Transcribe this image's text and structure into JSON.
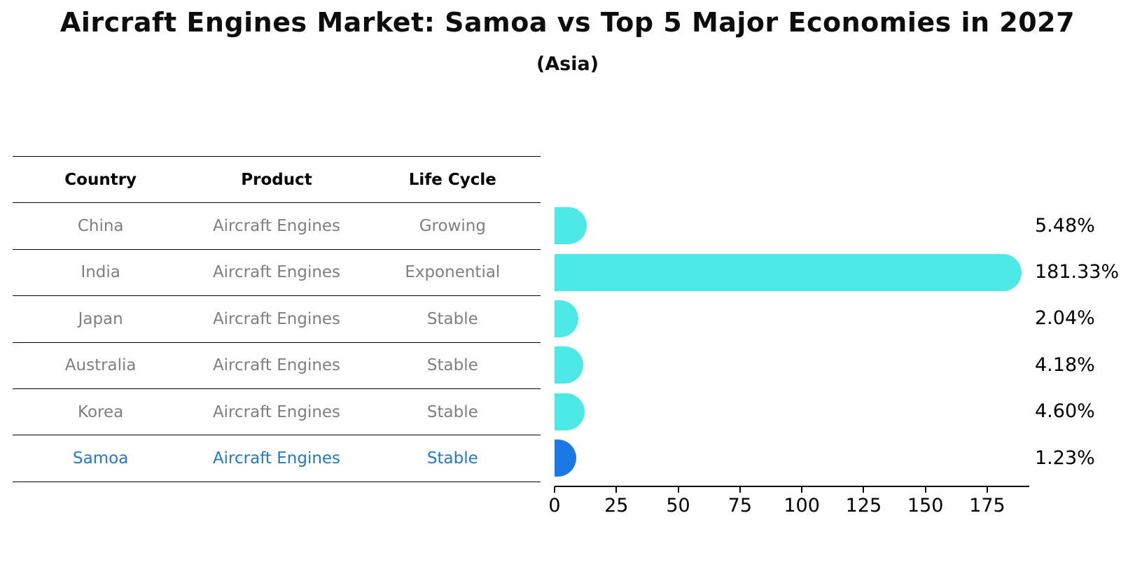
{
  "title": "Aircraft Engines Market: Samoa vs Top 5 Major Economies in 2027",
  "subtitle": "(Asia)",
  "table": {
    "headers": [
      "Country",
      "Product",
      "Life Cycle"
    ],
    "rows": [
      {
        "country": "China",
        "product": "Aircraft Engines",
        "life_cycle": "Growing",
        "highlight": false
      },
      {
        "country": "India",
        "product": "Aircraft Engines",
        "life_cycle": "Exponential",
        "highlight": false
      },
      {
        "country": "Japan",
        "product": "Aircraft Engines",
        "life_cycle": "Stable",
        "highlight": false
      },
      {
        "country": "Australia",
        "product": "Aircraft Engines",
        "life_cycle": "Stable",
        "highlight": false
      },
      {
        "country": "Korea",
        "product": "Aircraft Engines",
        "life_cycle": "Stable",
        "highlight": false
      },
      {
        "country": "Samoa",
        "product": "Aircraft Engines",
        "life_cycle": "Stable",
        "highlight": true
      }
    ]
  },
  "chart_data": {
    "type": "bar",
    "orientation": "horizontal",
    "title": "Aircraft Engines Market: Samoa vs Top 5 Major Economies in 2027",
    "subtitle": "(Asia)",
    "categories": [
      "China",
      "India",
      "Japan",
      "Australia",
      "Korea",
      "Samoa"
    ],
    "values": [
      5.48,
      181.33,
      2.04,
      4.18,
      4.6,
      1.23
    ],
    "value_labels": [
      "5.48%",
      "181.33%",
      "2.04%",
      "4.18%",
      "4.60%",
      "1.23%"
    ],
    "x_tick_labels": [
      "0",
      "25",
      "50",
      "75",
      "100",
      "125",
      "150",
      "175"
    ],
    "x_tick_values": [
      0,
      25,
      50,
      75,
      100,
      125,
      150,
      175
    ],
    "xlim": [
      0,
      192
    ],
    "xlabel": "",
    "ylabel": "",
    "grid": false,
    "legend": "none",
    "bar_color": "#4DE9E6",
    "highlight_color": "#1C78E4",
    "highlight_index": 5,
    "highlight_text_color": "#2478C8",
    "muted_text_color": "#7f7f7f"
  }
}
